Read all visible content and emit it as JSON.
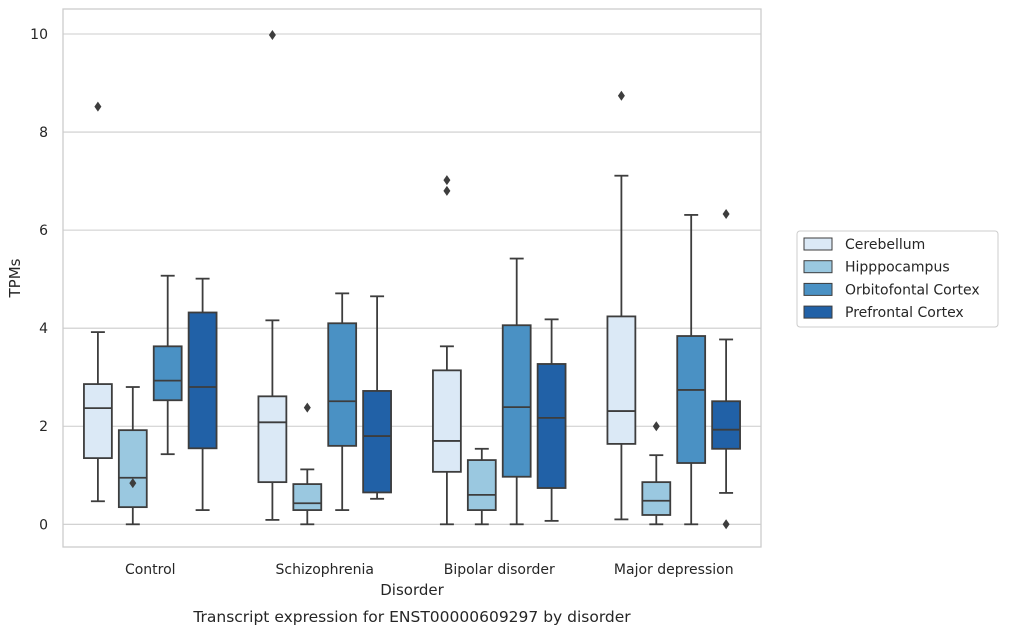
{
  "chart_data": {
    "type": "box",
    "caption": "Transcript expression for ENST00000609297 by disorder",
    "xlabel": "Disorder",
    "ylabel": "TPMs",
    "ylim": [
      -0.45,
      10.5
    ],
    "yticks": [
      0,
      2,
      4,
      6,
      8,
      10
    ],
    "grid": "horizontal",
    "legend_position": "right",
    "categories": [
      "Control",
      "Schizophrenia",
      "Bipolar disorder",
      "Major depression"
    ],
    "series": [
      {
        "name": "Cerebellum",
        "color": "#dbe9f6",
        "boxes": [
          {
            "whislo": 0.47,
            "q1": 1.35,
            "med": 2.37,
            "q3": 2.86,
            "whishi": 3.92,
            "fliers": [
              8.52
            ]
          },
          {
            "whislo": 0.09,
            "q1": 0.86,
            "med": 2.08,
            "q3": 2.61,
            "whishi": 4.16,
            "fliers": [
              9.98
            ]
          },
          {
            "whislo": 0.0,
            "q1": 1.07,
            "med": 1.7,
            "q3": 3.14,
            "whishi": 3.63,
            "fliers": [
              6.8,
              7.02
            ]
          },
          {
            "whislo": 0.1,
            "q1": 1.64,
            "med": 2.31,
            "q3": 4.24,
            "whishi": 7.11,
            "fliers": [
              8.74
            ]
          }
        ]
      },
      {
        "name": "Hipppocampus",
        "color": "#9ac8e0",
        "boxes": [
          {
            "whislo": 0.0,
            "q1": 0.35,
            "med": 0.95,
            "q3": 1.92,
            "whishi": 2.8,
            "fliers": [
              0.84
            ]
          },
          {
            "whislo": 0.0,
            "q1": 0.29,
            "med": 0.43,
            "q3": 0.82,
            "whishi": 1.12,
            "fliers": [
              2.38
            ]
          },
          {
            "whislo": 0.0,
            "q1": 0.29,
            "med": 0.6,
            "q3": 1.31,
            "whishi": 1.54,
            "fliers": []
          },
          {
            "whislo": 0.0,
            "q1": 0.19,
            "med": 0.48,
            "q3": 0.86,
            "whishi": 1.41,
            "fliers": [
              2.0
            ]
          }
        ]
      },
      {
        "name": "Orbitofontal Cortex",
        "color": "#4a91c4",
        "boxes": [
          {
            "whislo": 1.43,
            "q1": 2.53,
            "med": 2.93,
            "q3": 3.63,
            "whishi": 5.07,
            "fliers": []
          },
          {
            "whislo": 0.29,
            "q1": 1.6,
            "med": 2.51,
            "q3": 4.1,
            "whishi": 4.71,
            "fliers": []
          },
          {
            "whislo": 0.0,
            "q1": 0.97,
            "med": 2.39,
            "q3": 4.06,
            "whishi": 5.42,
            "fliers": []
          },
          {
            "whislo": 0.0,
            "q1": 1.25,
            "med": 2.74,
            "q3": 3.84,
            "whishi": 6.31,
            "fliers": []
          }
        ]
      },
      {
        "name": "Prefrontal Cortex",
        "color": "#2161a7",
        "boxes": [
          {
            "whislo": 0.29,
            "q1": 1.55,
            "med": 2.8,
            "q3": 4.32,
            "whishi": 5.01,
            "fliers": []
          },
          {
            "whislo": 0.52,
            "q1": 0.65,
            "med": 1.8,
            "q3": 2.72,
            "whishi": 4.65,
            "fliers": []
          },
          {
            "whislo": 0.07,
            "q1": 0.74,
            "med": 2.17,
            "q3": 3.27,
            "whishi": 4.18,
            "fliers": []
          },
          {
            "whislo": 0.64,
            "q1": 1.54,
            "med": 1.93,
            "q3": 2.51,
            "whishi": 3.77,
            "fliers": [
              6.33,
              0.0
            ]
          }
        ]
      }
    ]
  }
}
